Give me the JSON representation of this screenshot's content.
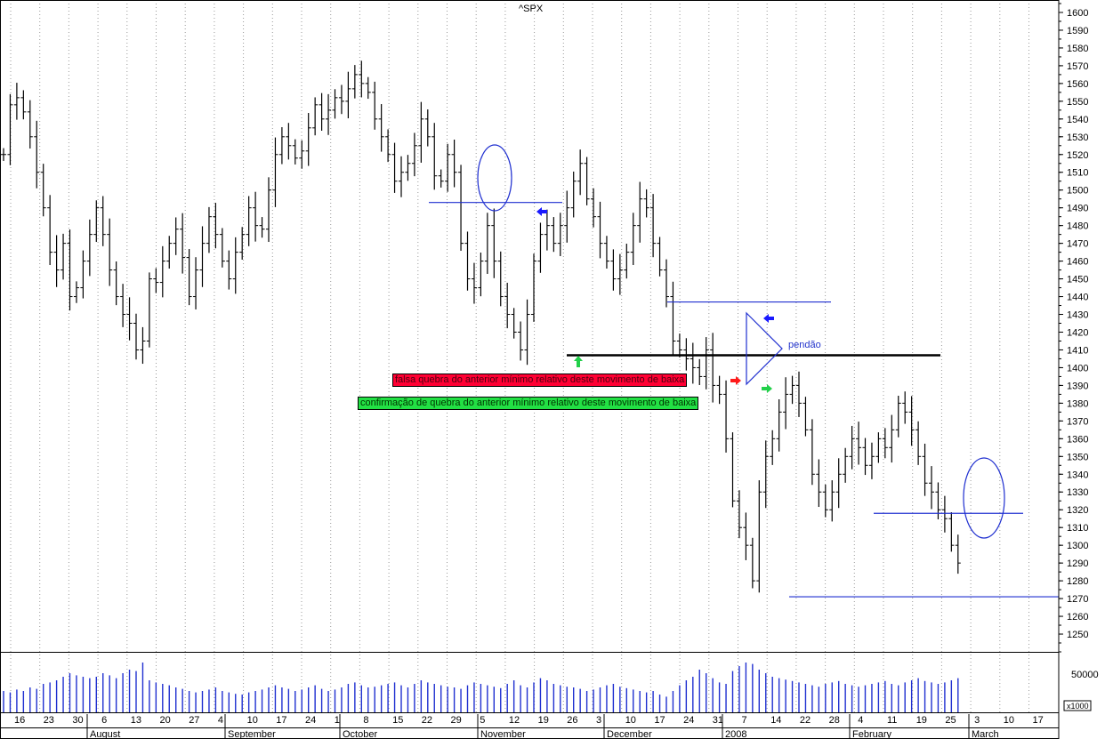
{
  "chart_data": {
    "type": "ohlc",
    "title": "^SPX",
    "price_axis": {
      "ylim": [
        1240,
        1605
      ],
      "ticks": [
        1250,
        1260,
        1270,
        1280,
        1290,
        1300,
        1310,
        1320,
        1330,
        1340,
        1350,
        1360,
        1370,
        1380,
        1390,
        1400,
        1410,
        1420,
        1430,
        1440,
        1450,
        1460,
        1470,
        1480,
        1490,
        1500,
        1510,
        1520,
        1530,
        1540,
        1550,
        1560,
        1570,
        1580,
        1590,
        1600
      ]
    },
    "volume_axis": {
      "tick_label": "50000",
      "unit_label": "x1000"
    },
    "x_axis": {
      "day_ticks": [
        "16",
        "23",
        "30",
        "6",
        "13",
        "20",
        "27",
        "4",
        "10",
        "17",
        "24",
        "1",
        "8",
        "15",
        "22",
        "29",
        "5",
        "12",
        "19",
        "26",
        "3",
        "10",
        "17",
        "24",
        "31",
        "7",
        "14",
        "22",
        "28",
        "4",
        "11",
        "19",
        "25",
        "3",
        "10",
        "17"
      ],
      "month_labels": [
        "August",
        "September",
        "October",
        "November",
        "December",
        "2008",
        "February",
        "March"
      ]
    },
    "grid": "vertical dotted",
    "approx_closes": [
      1520,
      1548,
      1552,
      1544,
      1530,
      1510,
      1490,
      1465,
      1455,
      1470,
      1440,
      1445,
      1460,
      1475,
      1490,
      1475,
      1455,
      1440,
      1430,
      1425,
      1410,
      1415,
      1450,
      1448,
      1460,
      1470,
      1478,
      1462,
      1440,
      1455,
      1470,
      1485,
      1475,
      1460,
      1450,
      1465,
      1475,
      1490,
      1480,
      1478,
      1500,
      1520,
      1530,
      1525,
      1518,
      1522,
      1535,
      1548,
      1540,
      1545,
      1552,
      1550,
      1557,
      1565,
      1560,
      1555,
      1540,
      1530,
      1520,
      1505,
      1510,
      1515,
      1525,
      1540,
      1530,
      1508,
      1505,
      1520,
      1510,
      1470,
      1450,
      1445,
      1460,
      1480,
      1460,
      1440,
      1430,
      1420,
      1410,
      1430,
      1460,
      1475,
      1480,
      1470,
      1480,
      1490,
      1505,
      1515,
      1495,
      1485,
      1470,
      1460,
      1450,
      1455,
      1465,
      1480,
      1495,
      1490,
      1470,
      1455,
      1440,
      1415,
      1410,
      1405,
      1400,
      1395,
      1410,
      1390,
      1385,
      1360,
      1325,
      1310,
      1300,
      1280,
      1330,
      1350,
      1360,
      1375,
      1385,
      1390,
      1380,
      1365,
      1340,
      1330,
      1320,
      1330,
      1340,
      1350,
      1360,
      1355,
      1345,
      1350,
      1360,
      1355,
      1365,
      1380,
      1375,
      1365,
      1350,
      1335,
      1330,
      1320,
      1315,
      1300,
      1290
    ],
    "volume_values": [
      30,
      28,
      32,
      30,
      35,
      33,
      40,
      42,
      45,
      50,
      55,
      52,
      50,
      48,
      50,
      55,
      52,
      48,
      55,
      60,
      58,
      70,
      45,
      42,
      40,
      38,
      35,
      33,
      30,
      28,
      30,
      32,
      35,
      30,
      28,
      26,
      25,
      28,
      30,
      32,
      35,
      38,
      35,
      33,
      30,
      32,
      35,
      38,
      33,
      30,
      32,
      35,
      40,
      42,
      38,
      35,
      36,
      38,
      40,
      42,
      38,
      35,
      40,
      45,
      42,
      40,
      38,
      36,
      35,
      33,
      38,
      42,
      40,
      38,
      36,
      34,
      40,
      45,
      38,
      35,
      42,
      48,
      45,
      40,
      38,
      36,
      35,
      33,
      30,
      32,
      35,
      38,
      40,
      36,
      34,
      32,
      30,
      28,
      30,
      25,
      22,
      30,
      38,
      45,
      50,
      60,
      55,
      48,
      42,
      40,
      58,
      65,
      70,
      68,
      60,
      55,
      50,
      48,
      46,
      44,
      42,
      40,
      38,
      36,
      40,
      42,
      44,
      40,
      38,
      36,
      38,
      40,
      42,
      44,
      40,
      38,
      42,
      45,
      48,
      44,
      42,
      40,
      42,
      45,
      48
    ],
    "annotations": {
      "red_box": "falsa quebra do anterior mínimo relativo deste movimento de baixa",
      "green_box": "confirmação de quebra do anterior mínimo relativo deste movimento de baixa",
      "pennant_label": "pendão"
    },
    "levels": {
      "black_support": 1407,
      "blue_lines": [
        1493,
        1437,
        1318,
        1271
      ]
    },
    "colors": {
      "bars": "#000000",
      "volume": "#1f2fd0",
      "level_line": "#1f2fd0",
      "support": "#000000",
      "red_arrow": "#ff1a1a",
      "green_arrow": "#22d04a",
      "blue_arrow": "#1a1aff"
    }
  }
}
